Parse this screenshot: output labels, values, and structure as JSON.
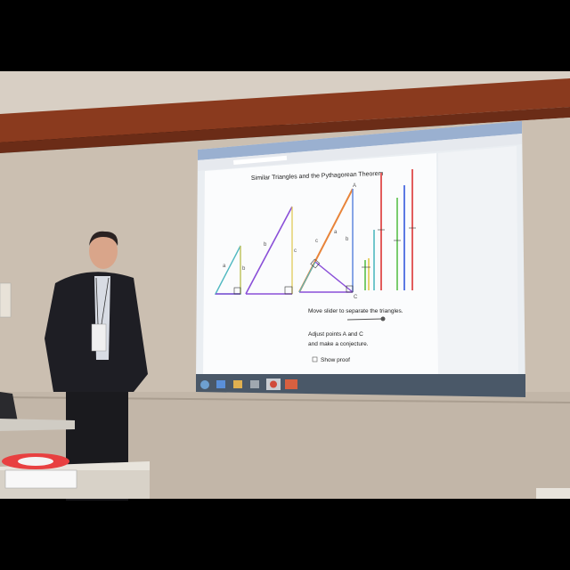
{
  "slide": {
    "title": "Similar Triangles and the Pythagorean Theorem",
    "instruction_1": "Move slider to separate the triangles.",
    "instruction_2a": "Adjust points A and C",
    "instruction_2b": "and make a conjecture.",
    "checkbox_label": "Show proof",
    "point_labels": {
      "a_top": "A",
      "c_bottom": "C"
    },
    "side_labels": {
      "a": "a",
      "b": "b",
      "c": "c"
    }
  },
  "colors": {
    "wall": "#c9bcae",
    "ceiling_stripe": "#8a3a1e",
    "screen": "#f4f6f8",
    "triangle_blue": "#6a8fe0",
    "triangle_purple": "#8a4fd8",
    "triangle_orange": "#e8843a",
    "triangle_teal": "#4fb8c0",
    "bar_red": "#e04a4a",
    "bar_green": "#5ac04a",
    "bar_blue": "#4a6ae0",
    "bar_yellow": "#e0c84a",
    "bar_purple": "#a04ae0"
  }
}
